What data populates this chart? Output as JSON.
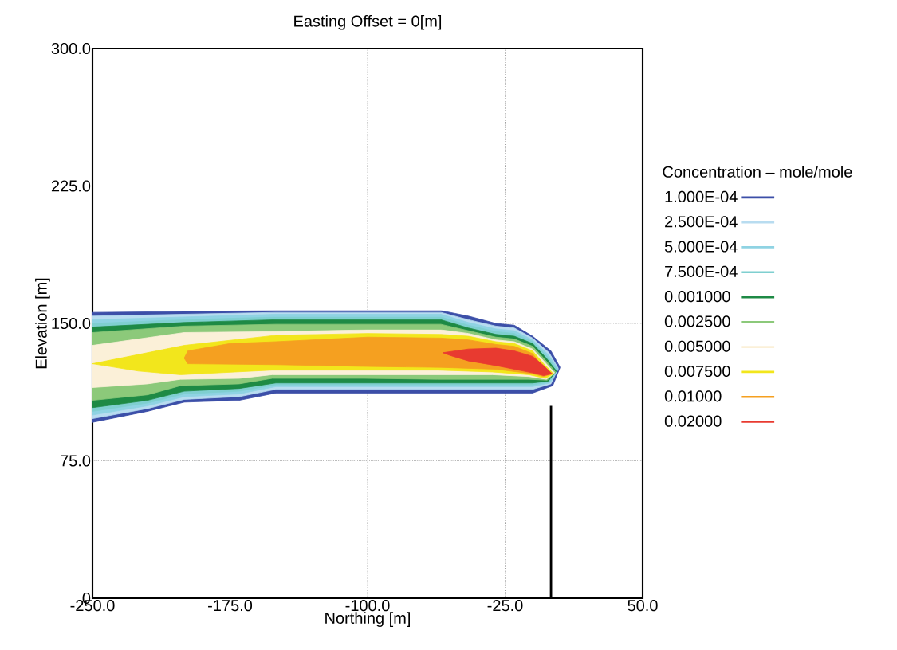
{
  "chart_data": {
    "type": "area",
    "title": "Easting Offset = 0[m]",
    "xlabel": "Northing [m]",
    "ylabel": "Elevation [m]",
    "legend_title": "Concentration – mole/mole",
    "xlim": [
      -250,
      50
    ],
    "ylim": [
      0,
      300
    ],
    "xticks": [
      {
        "value": -250,
        "label": "-250.0"
      },
      {
        "value": -175,
        "label": "-175.0"
      },
      {
        "value": -100,
        "label": "-100.0"
      },
      {
        "value": -25,
        "label": "-25.0"
      },
      {
        "value": 50,
        "label": "50.0"
      }
    ],
    "yticks": [
      0,
      {
        "value": 75,
        "label": "75.0"
      },
      {
        "value": 150,
        "label": "150.0"
      },
      {
        "value": 225,
        "label": "225.0"
      },
      {
        "value": 300,
        "label": "300.0"
      }
    ],
    "grid": true,
    "legend": "right",
    "series": [
      {
        "name": "1.000E-04",
        "color": "#3c4fa8",
        "x": [
          -250,
          -200,
          -150,
          -100,
          -60,
          -45,
          -30,
          -20,
          -10,
          0,
          5,
          1,
          -10,
          -30,
          -60,
          -100,
          -150,
          -170,
          -200,
          -220,
          -250
        ],
        "values": [
          156,
          156.5,
          157,
          157,
          157,
          154,
          150,
          149,
          143,
          135,
          126,
          116,
          112,
          112,
          112,
          112,
          112,
          108,
          107,
          102,
          96
        ]
      },
      {
        "name": "2.500E-04",
        "color": "#b8dcf0",
        "x": [
          -250,
          -200,
          -150,
          -100,
          -60,
          -45,
          -30,
          -20,
          -10,
          -1,
          4,
          0,
          -10,
          -30,
          -60,
          -100,
          -150,
          -170,
          -200,
          -220,
          -250
        ],
        "values": [
          154,
          155,
          156,
          156,
          156,
          152,
          148.5,
          147.5,
          142,
          134,
          125.5,
          117,
          114,
          114,
          114,
          114,
          114,
          110,
          108.5,
          103.5,
          98
        ]
      },
      {
        "name": "5.000E-04",
        "color": "#8fd3e3",
        "x": [
          -250,
          -200,
          -150,
          -100,
          -60,
          -45,
          -30,
          -20,
          -10,
          -1.5,
          4,
          -0.5,
          -10,
          -30,
          -60,
          -100,
          -150,
          -170,
          -200,
          -220,
          -250
        ],
        "values": [
          152,
          153.5,
          155,
          155,
          155,
          150.5,
          147,
          146,
          141,
          133,
          125,
          117.5,
          115.5,
          115.5,
          115.5,
          115.5,
          115.5,
          111.5,
          110,
          105,
          100
        ]
      },
      {
        "name": "7.500E-04",
        "color": "#7fcfd0",
        "x": [
          -250,
          -200,
          -150,
          -100,
          -60,
          -45,
          -30,
          -20,
          -10,
          -2,
          3.5,
          -1,
          -10,
          -30,
          -60,
          -100,
          -150,
          -170,
          -200,
          -220,
          -250
        ],
        "values": [
          150,
          152,
          153.5,
          153.5,
          153.5,
          149,
          145.5,
          144.5,
          140,
          132,
          124.5,
          118,
          116.5,
          116.5,
          116.5,
          116.5,
          116.5,
          113,
          111.5,
          106.5,
          102
        ]
      },
      {
        "name": "0.001000",
        "color": "#1e8a45",
        "x": [
          -250,
          -200,
          -150,
          -100,
          -60,
          -45,
          -30,
          -20,
          -10,
          -2.5,
          3,
          -1.5,
          -10,
          -30,
          -60,
          -100,
          -150,
          -170,
          -200,
          -220,
          -250
        ],
        "values": [
          148,
          150.5,
          152,
          152,
          152,
          147.5,
          144,
          143,
          139,
          131,
          124,
          118.5,
          117.5,
          117.5,
          117.5,
          117.5,
          117.5,
          114.5,
          113,
          108,
          104
        ]
      },
      {
        "name": "0.002500",
        "color": "#8cc97a",
        "x": [
          -250,
          -200,
          -150,
          -100,
          -60,
          -45,
          -30,
          -20,
          -10,
          -3,
          2.5,
          -2,
          -12,
          -32,
          -62,
          -102,
          -152,
          -170,
          -202,
          -220,
          -250
        ],
        "values": [
          145,
          148.5,
          149.5,
          149.5,
          149.5,
          146,
          142.5,
          141.5,
          137.5,
          130,
          123.5,
          119,
          119.5,
          119.5,
          119.5,
          120,
          120,
          117,
          116,
          111,
          108
        ]
      },
      {
        "name": "0.005000",
        "color": "#fbf0d8",
        "x": [
          -250,
          -200,
          -150,
          -100,
          -60,
          -45,
          -30,
          -20,
          -10,
          -3.5,
          2,
          -2.5,
          -12,
          -32,
          -62,
          -102,
          -152,
          -170,
          -202,
          -220,
          -250
        ],
        "values": [
          138,
          145,
          145.5,
          146.5,
          146.5,
          144.5,
          141,
          140,
          136,
          129,
          123,
          119.5,
          121,
          122,
          122,
          122,
          122,
          120,
          119.5,
          117,
          115
        ]
      },
      {
        "name": "0.007500",
        "color": "#f2e61c",
        "x": [
          -250,
          -200,
          -150,
          -100,
          -60,
          -45,
          -30,
          -20,
          -10,
          -4,
          1.5,
          -3,
          -12,
          -32,
          -62,
          -102,
          -152,
          -202,
          -225
        ],
        "values": [
          128,
          138,
          143.5,
          144.5,
          144,
          143,
          140,
          139,
          135,
          128,
          122.5,
          120,
          122,
          123.5,
          124.5,
          124.5,
          124.5,
          122,
          124
        ]
      },
      {
        "name": "0.01000",
        "color": "#f5a020",
        "x": [
          -200,
          -198,
          -175,
          -150,
          -100,
          -60,
          -45,
          -30,
          -20,
          -10,
          -5,
          1,
          -4,
          -10,
          -30,
          -60,
          -100,
          -150,
          -198
        ],
        "values": [
          131,
          135,
          139,
          140,
          142.5,
          142,
          141,
          138.5,
          137.5,
          133.5,
          127,
          122.5,
          121,
          122.5,
          125,
          126,
          126.5,
          127.5,
          128
        ]
      },
      {
        "name": "0.02000",
        "color": "#e83a30",
        "x": [
          -59,
          -45,
          -30,
          -20,
          -10,
          -4,
          0.5,
          -4,
          -10,
          -20,
          -30,
          -45,
          -55
        ],
        "values": [
          134,
          136,
          136.5,
          135,
          132,
          127,
          122.5,
          121.5,
          123,
          125,
          127,
          129.5,
          132.5
        ]
      },
      {
        "type": "line",
        "color": "#000000",
        "x": [
          0,
          0
        ],
        "values": [
          0,
          105
        ]
      }
    ]
  }
}
